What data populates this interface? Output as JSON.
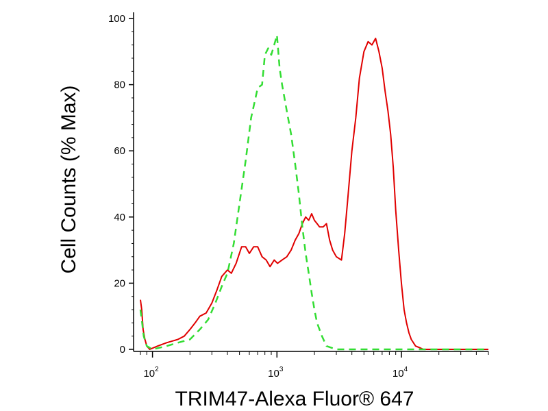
{
  "chart_data": {
    "type": "line",
    "title": "",
    "xlabel": "TRIM47-Alexa Fluor® 647",
    "ylabel": "Cell Counts (% Max)",
    "xscale": "log",
    "xlim": [
      80,
      50000
    ],
    "ylim": [
      0,
      100
    ],
    "yticks": [
      0,
      20,
      40,
      60,
      80,
      100
    ],
    "ytick_labels": [
      "0",
      "20",
      "40",
      "60",
      "80",
      "100"
    ],
    "xticks": [
      100,
      1000,
      10000
    ],
    "xtick_labels": [
      {
        "base": "10",
        "exp": "2"
      },
      {
        "base": "10",
        "exp": "3"
      },
      {
        "base": "10",
        "exp": "4"
      }
    ],
    "grid": false,
    "legend": "none",
    "series": [
      {
        "color": "#e00000",
        "style": "solid",
        "x": [
          80,
          82,
          84,
          87,
          90,
          95,
          110,
          130,
          160,
          180,
          200,
          220,
          240,
          270,
          300,
          330,
          360,
          400,
          430,
          470,
          520,
          560,
          600,
          650,
          700,
          760,
          820,
          880,
          950,
          1010,
          1100,
          1200,
          1300,
          1400,
          1500,
          1600,
          1700,
          1800,
          1900,
          2000,
          2100,
          2200,
          2350,
          2500,
          2650,
          2800,
          3000,
          3300,
          3500,
          3700,
          4000,
          4300,
          4600,
          5000,
          5400,
          5800,
          6200,
          6600,
          7000,
          7400,
          7800,
          8200,
          8600,
          9000,
          9500,
          10000,
          10500,
          11000,
          11500,
          12000,
          13000,
          14000,
          15000,
          16000,
          18000,
          20000,
          25000,
          30000,
          40000,
          50000
        ],
        "y": [
          15,
          12,
          6,
          3,
          1,
          0,
          1,
          2,
          3,
          4,
          6,
          8,
          10,
          11,
          14,
          18,
          22,
          24,
          23,
          26,
          31,
          31,
          29,
          31,
          31,
          28,
          27,
          25,
          27,
          26,
          27,
          28,
          30,
          33,
          35,
          38,
          40,
          39,
          41,
          39,
          38,
          37,
          37,
          38,
          33,
          30,
          28,
          27,
          35,
          45,
          60,
          70,
          82,
          90,
          93,
          92,
          94,
          90,
          85,
          78,
          72,
          65,
          55,
          42,
          30,
          20,
          12,
          8,
          5,
          3,
          1,
          0.5,
          0,
          0,
          0,
          0,
          0,
          0,
          0,
          0
        ]
      },
      {
        "color": "#33dd33",
        "style": "dashed",
        "x": [
          80,
          82,
          85,
          90,
          100,
          130,
          160,
          200,
          240,
          280,
          320,
          360,
          400,
          450,
          500,
          560,
          620,
          700,
          760,
          800,
          850,
          900,
          950,
          1000,
          1050,
          1100,
          1200,
          1300,
          1400,
          1500,
          1600,
          1700,
          1800,
          1900,
          2000,
          2100,
          2300,
          2500,
          3000,
          5000,
          10000,
          20000,
          50000
        ],
        "y": [
          12,
          9,
          4,
          1,
          0,
          1,
          2,
          3,
          6,
          9,
          14,
          19,
          23,
          32,
          44,
          57,
          70,
          79,
          80,
          89,
          91,
          89,
          92,
          95,
          85,
          80,
          72,
          65,
          56,
          47,
          37,
          29,
          23,
          17,
          12,
          8,
          4,
          1,
          0,
          0,
          0,
          0,
          0
        ]
      }
    ]
  }
}
